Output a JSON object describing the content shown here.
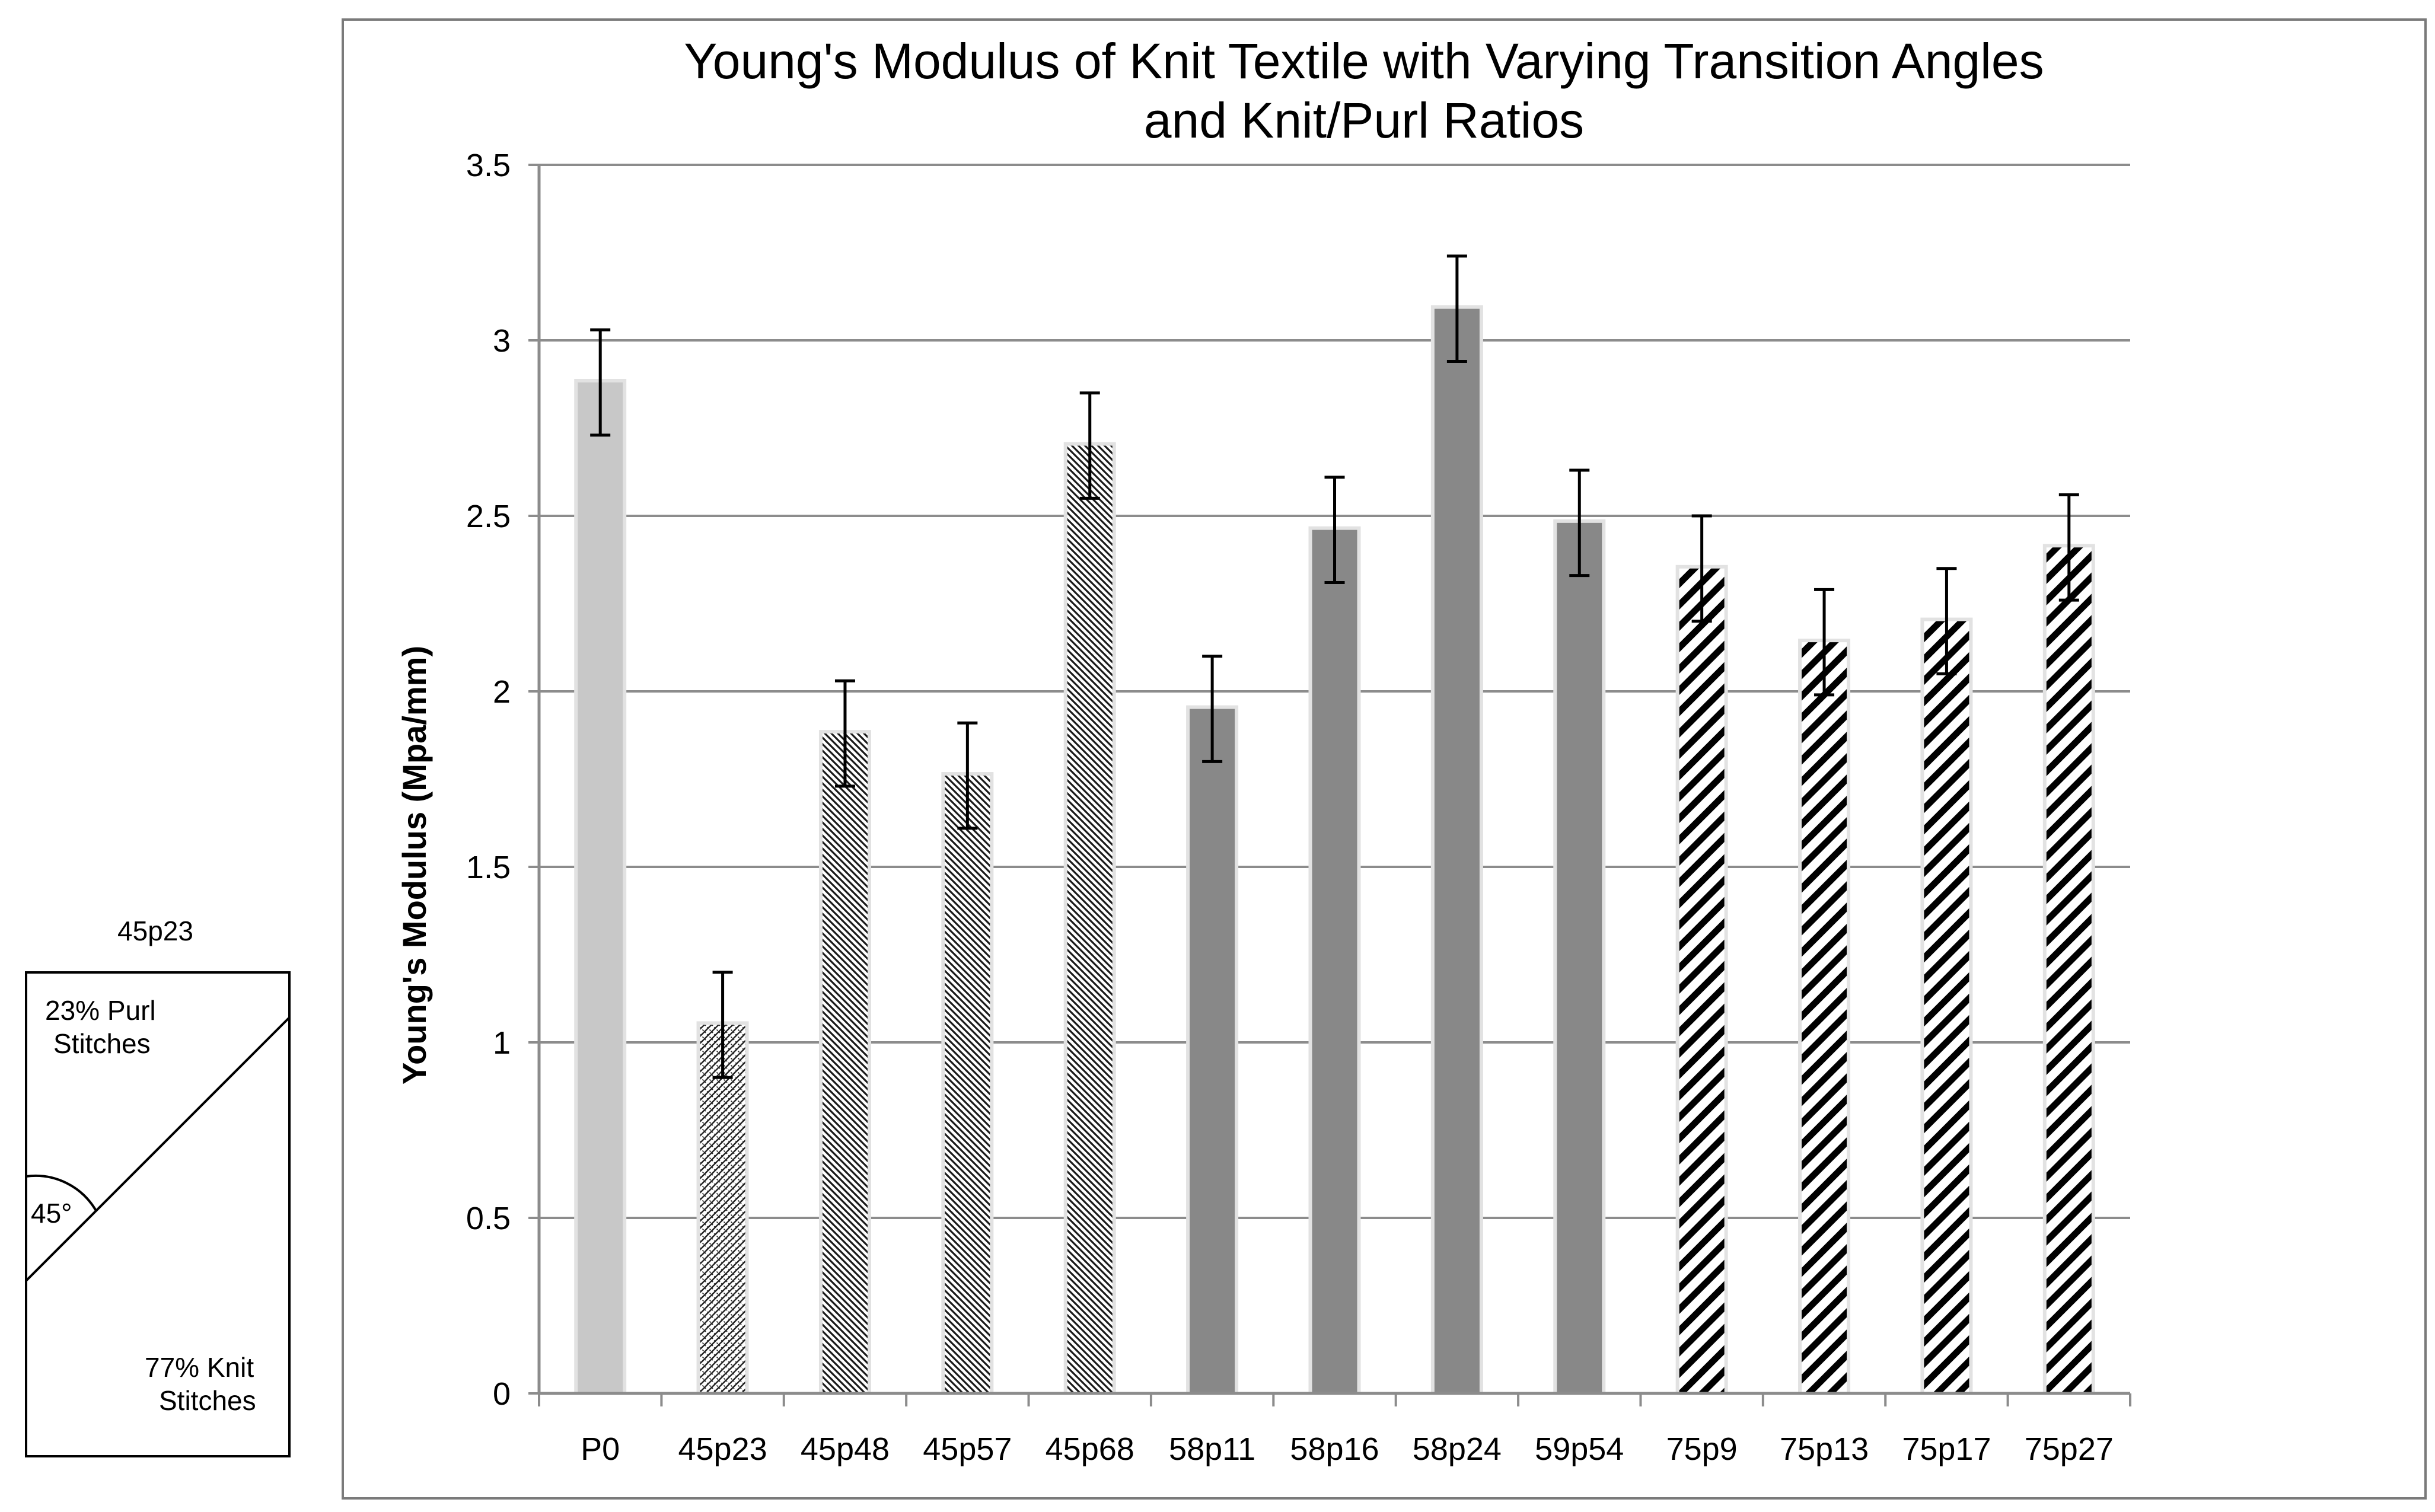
{
  "chart_data": {
    "type": "bar",
    "title": [
      "Young's Modulus of Knit Textile with Varying Transition Angles",
      "and Knit/Purl Ratios"
    ],
    "xlabel": "",
    "ylabel": "Young's Modulus (Mpa/mm)",
    "ylim": [
      0,
      3.5
    ],
    "yticks": [
      0,
      0.5,
      1,
      1.5,
      2,
      2.5,
      3,
      3.5
    ],
    "ytick_labels": [
      "0",
      "0.5",
      "1",
      "1.5",
      "2",
      "2.5",
      "3",
      "3.5"
    ],
    "grid": true,
    "categories": [
      "P0",
      "45p23",
      "45p48",
      "45p57",
      "45p68",
      "58p11",
      "58p16",
      "58p24",
      "59p54",
      "75p9",
      "75p13",
      "75p17",
      "75p27"
    ],
    "values": [
      2.88,
      1.05,
      1.88,
      1.76,
      2.7,
      1.95,
      2.46,
      3.09,
      2.48,
      2.35,
      2.14,
      2.2,
      2.41
    ],
    "errors": [
      0.15,
      0.15,
      0.15,
      0.15,
      0.15,
      0.15,
      0.15,
      0.15,
      0.15,
      0.15,
      0.15,
      0.15,
      0.15
    ],
    "fill_styles": [
      "solid-light",
      "dots",
      "fine-hatch",
      "fine-hatch",
      "fine-hatch",
      "solid-dark",
      "solid-dark",
      "solid-dark",
      "solid-dark",
      "bold-stripes",
      "bold-stripes",
      "bold-stripes",
      "bold-stripes"
    ],
    "colors": {
      "light": "#c8c8c8",
      "dark": "#888888",
      "grid": "#8c8c8c",
      "axis": "#000000",
      "frame": "#7a7a7a",
      "shadow": "#e2e2e2"
    }
  },
  "inset": {
    "title": "45p23",
    "top_label": [
      "23% Purl",
      "Stitches"
    ],
    "angle_label": "45°",
    "bottom_label": [
      "77% Knit",
      "Stitches"
    ]
  }
}
